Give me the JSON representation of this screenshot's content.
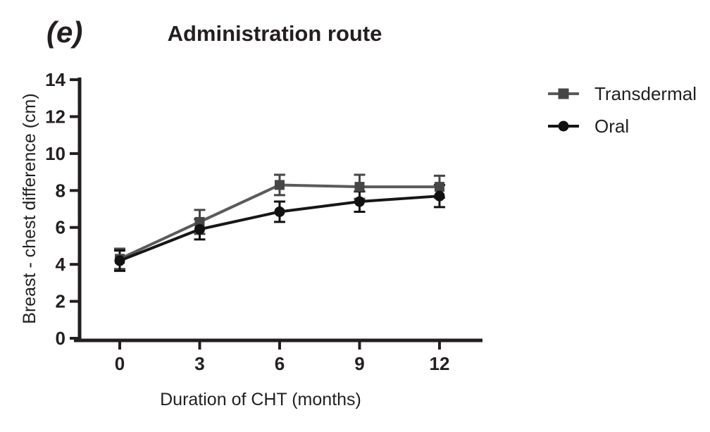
{
  "figure": {
    "panel_label": "(e)",
    "title": "Administration route"
  },
  "chart_data": {
    "type": "line",
    "x": [
      0,
      3,
      6,
      9,
      12
    ],
    "xticks": [
      0,
      3,
      6,
      9,
      12
    ],
    "xlabel": "Duration of CHT (months)",
    "ylabel": "Breast - chest difference (cm)",
    "ylim": [
      0,
      14
    ],
    "ytick_step": 2,
    "grid": false,
    "error_bars": true,
    "legend_position": "right",
    "series": [
      {
        "name": "Transdermal",
        "marker": "square",
        "color": "#5b5b5b",
        "marker_color": "#464646",
        "values": [
          4.3,
          6.3,
          8.3,
          8.2,
          8.2
        ],
        "errors": [
          0.55,
          0.65,
          0.55,
          0.65,
          0.6
        ]
      },
      {
        "name": "Oral",
        "marker": "circle",
        "color": "#161616",
        "marker_color": "#111111",
        "values": [
          4.2,
          5.9,
          6.85,
          7.4,
          7.7
        ],
        "errors": [
          0.55,
          0.55,
          0.55,
          0.55,
          0.6
        ]
      }
    ]
  },
  "colors": {
    "axis": "#231f20",
    "text": "#231f20",
    "background": "#ffffff"
  }
}
